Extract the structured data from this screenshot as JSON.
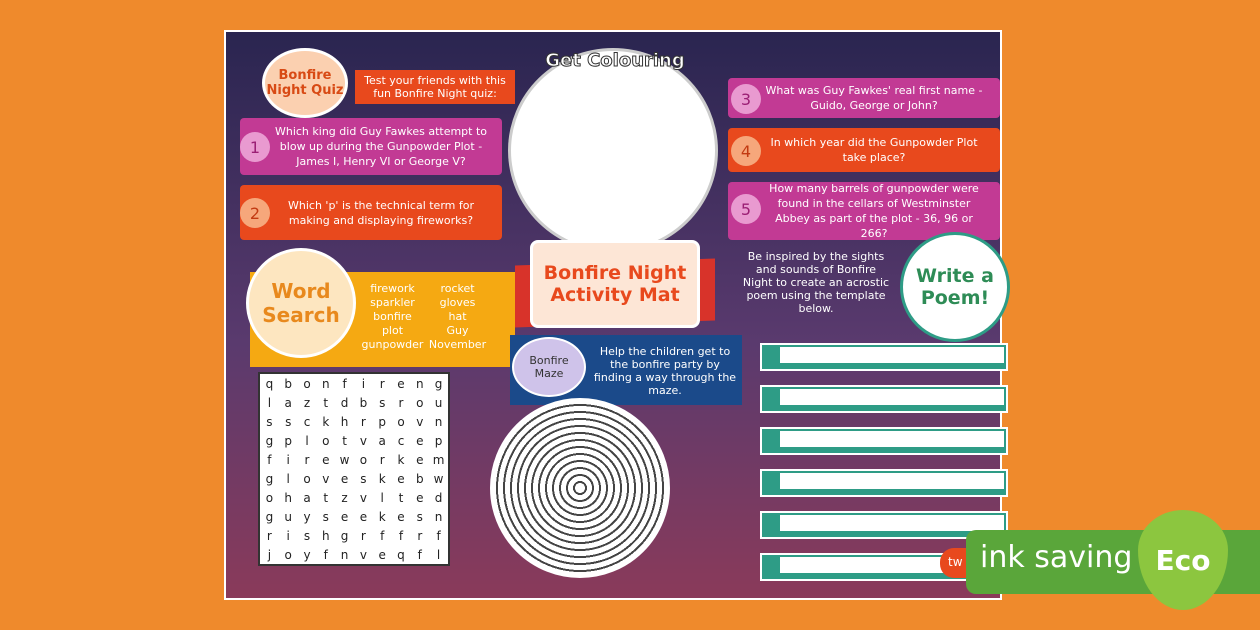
{
  "quiz": {
    "title": "Bonfire Night Quiz",
    "intro": "Test your friends with this fun Bonfire Night quiz:",
    "questions": [
      {
        "number": 1,
        "text": "Which king did Guy Fawkes attempt to blow up during the Gunpowder Plot - James I, Henry VI or George V?"
      },
      {
        "number": 2,
        "text": "Which 'p' is the technical term for making and displaying fireworks?"
      },
      {
        "number": 3,
        "text": "What was Guy Fawkes' real first name - Guido, George or John?"
      },
      {
        "number": 4,
        "text": "In which year did the Gunpowder Plot take place?"
      },
      {
        "number": 5,
        "text": "How many barrels of gunpowder were found in the cellars of Westminster Abbey as part of the plot - 36, 96 or 266?"
      }
    ]
  },
  "colouring": {
    "title": "Get Colouring"
  },
  "mat": {
    "title": "Bonfire Night Activity Mat"
  },
  "word_search": {
    "title": "Word Search",
    "words": [
      "firework",
      "rocket",
      "sparkler",
      "gloves",
      "bonfire",
      "hat",
      "plot",
      "Guy",
      "gunpowder",
      "November"
    ],
    "grid": [
      [
        "q",
        "b",
        "o",
        "n",
        "f",
        "i",
        "r",
        "e",
        "n",
        "g"
      ],
      [
        "l",
        "a",
        "z",
        "t",
        "d",
        "b",
        "s",
        "r",
        "o",
        "u"
      ],
      [
        "s",
        "s",
        "c",
        "k",
        "h",
        "r",
        "p",
        "o",
        "v",
        "n"
      ],
      [
        "g",
        "p",
        "l",
        "o",
        "t",
        "v",
        "a",
        "c",
        "e",
        "p"
      ],
      [
        "f",
        "i",
        "r",
        "e",
        "w",
        "o",
        "r",
        "k",
        "e",
        "m"
      ],
      [
        "g",
        "l",
        "o",
        "v",
        "e",
        "s",
        "k",
        "e",
        "b",
        "w"
      ],
      [
        "o",
        "h",
        "a",
        "t",
        "z",
        "v",
        "l",
        "t",
        "e",
        "d"
      ],
      [
        "g",
        "u",
        "y",
        "s",
        "e",
        "e",
        "k",
        "e",
        "s",
        "n"
      ],
      [
        "r",
        "i",
        "s",
        "h",
        "g",
        "r",
        "f",
        "f",
        "r",
        "f"
      ],
      [
        "j",
        "o",
        "y",
        "f",
        "n",
        "v",
        "e",
        "q",
        "f",
        "l"
      ]
    ]
  },
  "maze": {
    "title": "Bonfire Maze",
    "text": "Help the children get to the bonfire party by finding a way through the maze."
  },
  "poem": {
    "title": "Write a Poem!",
    "text": "Be inspired by the sights and sounds of Bonfire Night to create an acrostic poem using the template below."
  },
  "badge": {
    "label": "ink saving",
    "eco": "Eco",
    "brand": "tw"
  }
}
